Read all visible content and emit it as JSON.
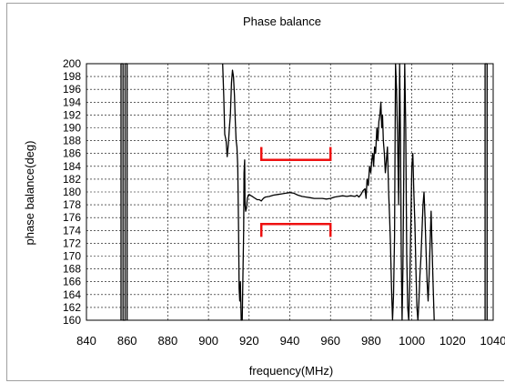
{
  "chart_data": {
    "type": "line",
    "title": "Phase balance",
    "xlabel": "frequency(MHz)",
    "ylabel": "phase balance(deg)",
    "xlim": [
      840,
      1040
    ],
    "ylim": [
      160,
      200
    ],
    "x_ticks": [
      "840",
      "860",
      "880",
      "900",
      "920",
      "940",
      "960",
      "980",
      "1000",
      "1020",
      "1040"
    ],
    "y_ticks": [
      "160",
      "162",
      "164",
      "166",
      "168",
      "170",
      "172",
      "174",
      "176",
      "178",
      "180",
      "182",
      "184",
      "186",
      "188",
      "190",
      "192",
      "194",
      "196",
      "198",
      "200"
    ],
    "grid": true,
    "legend": "none",
    "colors": {
      "line": "#000000",
      "spec": "#ee1111",
      "grid": "#000000"
    },
    "series": [
      {
        "values": [
          [
            857,
            160
          ],
          [
            857,
            200
          ],
          [
            858,
            200
          ],
          [
            858,
            160
          ],
          [
            859,
            160
          ],
          [
            859,
            200
          ],
          [
            860,
            200
          ],
          [
            860,
            160
          ]
        ]
      },
      {
        "values": [
          [
            907,
            200
          ],
          [
            907.5,
            195
          ],
          [
            908,
            189
          ],
          [
            908.7,
            188
          ],
          [
            909.2,
            185.5
          ],
          [
            909.8,
            187.5
          ],
          [
            910.3,
            190
          ],
          [
            910.8,
            192
          ],
          [
            911.3,
            197
          ],
          [
            911.8,
            199
          ],
          [
            912.3,
            198
          ],
          [
            912.8,
            195
          ],
          [
            913.2,
            191
          ],
          [
            913.6,
            188
          ],
          [
            914,
            187
          ],
          [
            914.4,
            184
          ],
          [
            914.8,
            174
          ],
          [
            915.1,
            165
          ],
          [
            915.4,
            163
          ],
          [
            915.7,
            166
          ],
          [
            916.1,
            160
          ],
          [
            916.6,
            160
          ],
          [
            917,
            168
          ],
          [
            917.3,
            174
          ],
          [
            917.5,
            183
          ],
          [
            917.8,
            185
          ],
          [
            918,
            178
          ],
          [
            918.3,
            177
          ],
          [
            918.7,
            177.5
          ],
          [
            919.1,
            179
          ],
          [
            919.6,
            179.5
          ],
          [
            920,
            179.6
          ],
          [
            921,
            179.4
          ],
          [
            922,
            179.2
          ],
          [
            923,
            179.0
          ],
          [
            924,
            178.8
          ],
          [
            925,
            178.8
          ],
          [
            926,
            178.6
          ],
          [
            927,
            179.0
          ],
          [
            928,
            179.2
          ],
          [
            930,
            179.3
          ],
          [
            932,
            179.5
          ],
          [
            934,
            179.6
          ],
          [
            936,
            179.7
          ],
          [
            938,
            179.8
          ],
          [
            940,
            179.9
          ],
          [
            942,
            179.8
          ],
          [
            944,
            179.5
          ],
          [
            946,
            179.3
          ],
          [
            948,
            179.2
          ],
          [
            950,
            179.1
          ],
          [
            952,
            179.0
          ],
          [
            954,
            179.0
          ],
          [
            956,
            179.0
          ],
          [
            958,
            178.9
          ],
          [
            960,
            179.0
          ],
          [
            962,
            179.2
          ],
          [
            964,
            179.3
          ],
          [
            966,
            179.4
          ],
          [
            968,
            179.3
          ],
          [
            970,
            179.4
          ],
          [
            972,
            179.3
          ],
          [
            973,
            179.5
          ],
          [
            974,
            179.2
          ],
          [
            975,
            179.6
          ],
          [
            976,
            180.2
          ],
          [
            977,
            180.5
          ],
          [
            977.5,
            179.0
          ],
          [
            978,
            182
          ],
          [
            978.6,
            181
          ],
          [
            979.2,
            184
          ],
          [
            979.8,
            183
          ],
          [
            980.3,
            185
          ],
          [
            980.8,
            186
          ],
          [
            981.2,
            184
          ],
          [
            981.7,
            187
          ],
          [
            982.2,
            186
          ],
          [
            982.8,
            190
          ],
          [
            983.3,
            188
          ],
          [
            983.8,
            191
          ],
          [
            984.3,
            192
          ],
          [
            984.8,
            194
          ],
          [
            985.2,
            190
          ],
          [
            985.6,
            192
          ],
          [
            986,
            188
          ],
          [
            986.5,
            186
          ],
          [
            987,
            183
          ],
          [
            987.5,
            185
          ],
          [
            988,
            187
          ],
          [
            988.6,
            180
          ],
          [
            989.1,
            176
          ],
          [
            989.5,
            172
          ],
          [
            990,
            165
          ],
          [
            990.5,
            160
          ],
          [
            991,
            164
          ],
          [
            991.5,
            173
          ],
          [
            992,
            200
          ],
          [
            992.5,
            196
          ],
          [
            993,
            188
          ],
          [
            993.5,
            178
          ],
          [
            994,
            200
          ],
          [
            994.4,
            189
          ],
          [
            994.8,
            170
          ],
          [
            995.2,
            160
          ],
          [
            995.6,
            168
          ],
          [
            996,
            182
          ],
          [
            996.5,
            200
          ],
          [
            997,
            190
          ],
          [
            997.5,
            170
          ],
          [
            998,
            162
          ],
          [
            998.5,
            160
          ],
          [
            999,
            166
          ],
          [
            999.5,
            175
          ],
          [
            1000,
            184
          ],
          [
            1000.5,
            186
          ],
          [
            1001,
            180
          ],
          [
            1001.5,
            175
          ],
          [
            1002,
            168
          ],
          [
            1002.5,
            162
          ],
          [
            1003,
            160
          ],
          [
            1003.5,
            163
          ],
          [
            1004,
            167
          ],
          [
            1004.5,
            170
          ],
          [
            1005,
            174
          ],
          [
            1005.5,
            178
          ],
          [
            1006,
            180
          ],
          [
            1006.5,
            176
          ],
          [
            1007,
            171
          ],
          [
            1007.5,
            166
          ],
          [
            1008,
            163
          ],
          [
            1008.5,
            167
          ],
          [
            1009,
            172
          ],
          [
            1009.5,
            177
          ],
          [
            1010,
            171
          ],
          [
            1010.5,
            165
          ],
          [
            1011,
            160
          ]
        ]
      },
      {
        "values": [
          [
            1036,
            160
          ],
          [
            1036,
            200
          ],
          [
            1037,
            200
          ],
          [
            1037,
            160
          ]
        ]
      }
    ],
    "annotations": [
      {
        "shape": "bracket-down",
        "x": [
          926,
          960
        ],
        "y": 185,
        "tick_to": 187
      },
      {
        "shape": "bracket-up",
        "x": [
          926,
          960
        ],
        "y": 175,
        "tick_to": 173
      }
    ]
  }
}
